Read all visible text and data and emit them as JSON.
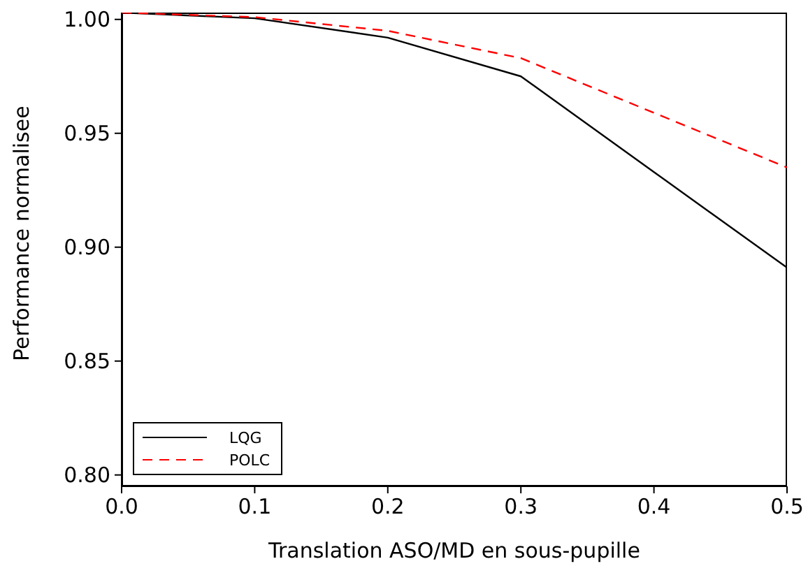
{
  "chart_data": {
    "type": "line",
    "xlabel": "Translation ASO/MD en sous-pupille",
    "ylabel": "Performance normalisee",
    "x": [
      0,
      0.1,
      0.2,
      0.3,
      0.4,
      0.5
    ],
    "series": [
      {
        "name": "LQG",
        "color": "#000000",
        "line_style": "solid",
        "values": [
          1.003,
          1.0005,
          0.992,
          0.975,
          0.933,
          0.891
        ]
      },
      {
        "name": "POLC",
        "color": "#ff0000",
        "line_style": "dashed",
        "values": [
          1.003,
          1.001,
          0.995,
          0.983,
          0.959,
          0.935
        ]
      }
    ],
    "xlim": [
      0,
      0.5
    ],
    "ylim": [
      0.795,
      1.003
    ],
    "xticks": [
      {
        "value": 0,
        "label": "0.0"
      },
      {
        "value": 0.1,
        "label": "0.1"
      },
      {
        "value": 0.2,
        "label": "0.2"
      },
      {
        "value": 0.3,
        "label": "0.3"
      },
      {
        "value": 0.4,
        "label": "0.4"
      },
      {
        "value": 0.5,
        "label": "0.5"
      }
    ],
    "yticks": [
      {
        "value": 0.8,
        "label": "0.80"
      },
      {
        "value": 0.85,
        "label": "0.85"
      },
      {
        "value": 0.9,
        "label": "0.90"
      },
      {
        "value": 0.95,
        "label": "0.95"
      },
      {
        "value": 1.0,
        "label": "1.00"
      }
    ],
    "grid": false,
    "legend": "bottom left",
    "marker": "none"
  }
}
